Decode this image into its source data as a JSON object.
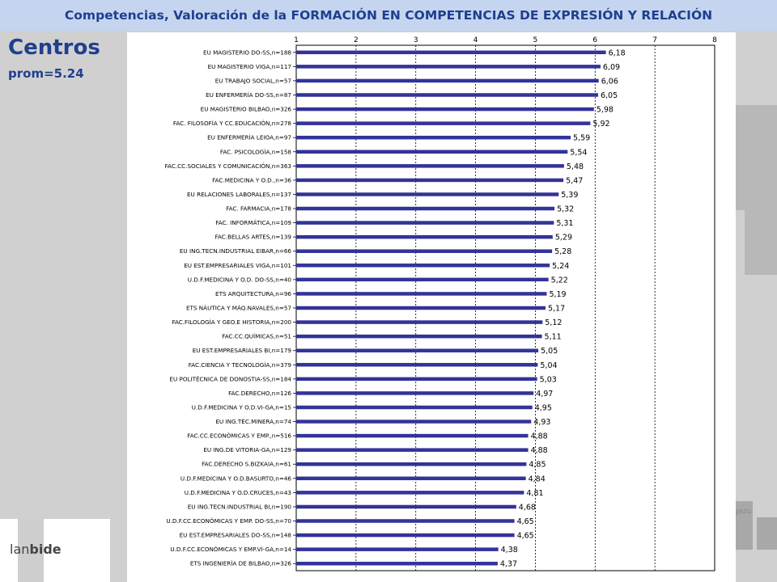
{
  "header": {
    "title": "Competencias, Valoración de la FORMACIÓN EN COMPETENCIAS DE EXPRESIÓN Y RELACIÓN"
  },
  "left": {
    "title": "Centros",
    "subtitle": "prom=5.24"
  },
  "logo": {
    "light": "lan",
    "bold": "bide"
  },
  "deco": {
    "text": "gazu"
  },
  "chart_data": {
    "type": "bar",
    "orientation": "horizontal",
    "title": "",
    "xlabel": "",
    "ylabel": "",
    "xlim": [
      1,
      8
    ],
    "ticks": [
      1,
      2,
      3,
      4,
      5,
      6,
      7,
      8
    ],
    "gridlines": "dashed vertical",
    "bar_color": "#33339a",
    "categories": [
      "EU MAGISTERIO DO-SS,n=188",
      "EU MAGISTERIO VIGA,n=117",
      "EU TRABAJO SOCIAL,n=57",
      "EU ENFERMERÍA DO-SS,n=87",
      "EU MAGISTERIO BILBAO,n=326",
      "FAC. FILOSOFÍA Y CC.EDUCACIÓN,n=278",
      "EU ENFERMERÍA LEIOA,n=97",
      "FAC. PSICOLOGÍA,n=158",
      "FAC.CC.SOCIALES Y COMUNICACIÓN,n=363",
      "FAC.MEDICINA Y O.D.,n=36",
      "EU RELACIONES LABORALES,n=137",
      "FAC. FARMACIA,n=178",
      "FAC. INFORMÁTICA,n=109",
      "FAC.BELLAS ARTES,n=139",
      "EU ING.TECN.INDUSTRIAL EIBAR,n=66",
      "EU EST.EMPRESARIALES VIGA,n=101",
      "U.D.F.MEDICINA Y O.D. DO-SS,n=40",
      "ETS ARQUITECTURA,n=96",
      "ETS NÁUTICA Y MÁQ.NAVALES,n=57",
      "FAC.FILOLOGÍA Y GEO.E HISTORIA,n=200",
      "FAC.CC.QUÍMICAS,n=51",
      "EU EST.EMPRESARIALES BI,n=179",
      "FAC.CIENCIA Y TECNOLOGÍA,n=379",
      "EU POLITÉCNICA DE DONOSTIA-SS,n=184",
      "FAC.DERECHO,n=126",
      "U.D.F.MEDICINA Y O.D.VI-GA,n=15",
      "EU ING.TÉC.MINERA,n=74",
      "FAC.CC.ECONÓMICAS Y EMP.,n=516",
      "EU ING.DE VITORIA-GA,n=129",
      "FAC.DERECHO S.BIZKAIA,n=61",
      "U.D.F.MEDICINA Y O.D.BASURTO,n=46",
      "U.D.F.MEDICINA Y O.D.CRUCES,n=43",
      "EU ING.TECN.INDUSTRIAL BI,n=190",
      "U.D.F.CC.ECONÓMICAS Y EMP. DO-SS,n=70",
      "EU EST.EMPRESARIALES DO-SS,n=148",
      "U.D.F.CC.ECONÓMICAS Y EMP.VI-GA,n=14",
      "ETS INGENIERÍA DE BILBAO,n=326"
    ],
    "values": [
      6.18,
      6.09,
      6.06,
      6.05,
      5.98,
      5.92,
      5.59,
      5.54,
      5.48,
      5.47,
      5.39,
      5.32,
      5.31,
      5.29,
      5.28,
      5.24,
      5.22,
      5.19,
      5.17,
      5.12,
      5.11,
      5.05,
      5.04,
      5.03,
      4.97,
      4.95,
      4.93,
      4.88,
      4.88,
      4.85,
      4.84,
      4.81,
      4.68,
      4.65,
      4.65,
      4.38,
      4.37
    ],
    "value_labels": [
      "6,18",
      "6,09",
      "6,06",
      "6,05",
      "5,98",
      "5,92",
      "5,59",
      "5,54",
      "5,48",
      "5,47",
      "5,39",
      "5,32",
      "5,31",
      "5,29",
      "5,28",
      "5,24",
      "5,22",
      "5,19",
      "5,17",
      "5,12",
      "5,11",
      "5,05",
      "5,04",
      "5,03",
      "4,97",
      "4,95",
      "4,93",
      "4,88",
      "4,88",
      "4,85",
      "4,84",
      "4,81",
      "4,68",
      "4,65",
      "4,65",
      "4,38",
      "4,37"
    ]
  }
}
